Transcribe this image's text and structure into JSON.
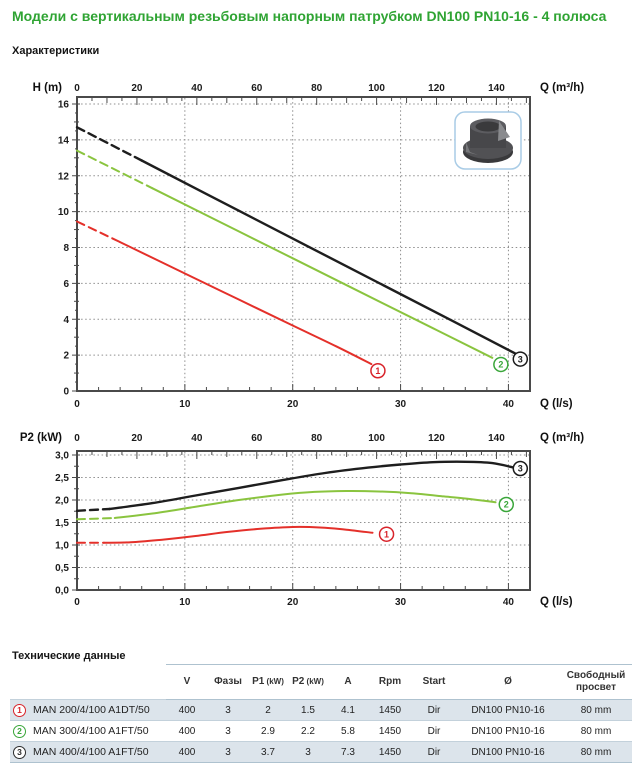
{
  "page": {
    "title": "Модели с вертикальным резьбовым напорным патрубком DN100 PN10-16 - 4 полюса",
    "characteristics_label": "Характеристики",
    "tech_data_label": "Технические данные"
  },
  "chart_data": [
    {
      "type": "line",
      "id": "chart1",
      "ylabel": "H (m)",
      "xlabel_top": "Q (m³/h)",
      "xlabel_bottom": "Q (l/s)",
      "xlim": [
        0,
        42
      ],
      "ylim": [
        0,
        16
      ],
      "m3h_per_ls": 3.6,
      "y_ticks": [
        0,
        2,
        4,
        6,
        8,
        10,
        12,
        14,
        16
      ],
      "y_tick_labels": [
        "0",
        "2",
        "4",
        "6",
        "8",
        "10",
        "12",
        "14",
        "16"
      ],
      "y_minor_step": 0.5,
      "y_mid_step": 1,
      "y_major_step": 2,
      "x_ticks_bottom": [
        0,
        10,
        20,
        30,
        40
      ],
      "x_tick_bottom_labels": [
        "0",
        "10",
        "20",
        "30",
        "40"
      ],
      "x_minor_step": 2,
      "x_ticks_top": [
        0,
        20,
        40,
        60,
        80,
        100,
        120,
        140
      ],
      "x_tick_top_labels": [
        "0",
        "20",
        "40",
        "60",
        "80",
        "100",
        "120",
        "140"
      ],
      "top_minor_step": 5,
      "grid_x": [
        10,
        20,
        30,
        40
      ],
      "grid_y": [
        2,
        4,
        6,
        8,
        10,
        12,
        14,
        16
      ],
      "series": [
        {
          "name": "MAN 200/4/100 A1DT/50",
          "label": "1",
          "color": "#e4302a",
          "label_color": "#d8232a",
          "width": 2,
          "dash_points": [
            [
              0,
              9.45
            ],
            [
              4,
              8.3
            ]
          ],
          "solid_points": [
            [
              4,
              8.3
            ],
            [
              10,
              6.55
            ],
            [
              15,
              5.1
            ],
            [
              20,
              3.65
            ],
            [
              24,
              2.5
            ],
            [
              27.3,
              1.5
            ]
          ],
          "end_label": [
            27.9,
            1.13
          ]
        },
        {
          "name": "MAN 300/4/100 A1FT/50",
          "label": "2",
          "color": "#8ac43f",
          "label_color": "#3aa63a",
          "width": 2,
          "dash_points": [
            [
              0,
              13.4
            ],
            [
              7,
              11.3
            ]
          ],
          "solid_points": [
            [
              7,
              11.3
            ],
            [
              15,
              8.9
            ],
            [
              25,
              5.9
            ],
            [
              33,
              3.5
            ],
            [
              38.5,
              1.85
            ]
          ],
          "end_label": [
            39.3,
            1.48
          ]
        },
        {
          "name": "MAN 400/4/100 A1FT/50",
          "label": "3",
          "color": "#1e1e1e",
          "label_color": "#1c1c1c",
          "width": 2.4,
          "dash_points": [
            [
              0,
              14.7
            ],
            [
              6,
              12.85
            ]
          ],
          "solid_points": [
            [
              6,
              12.85
            ],
            [
              15,
              10.05
            ],
            [
              25,
              6.95
            ],
            [
              35,
              3.85
            ],
            [
              40.6,
              2.1
            ]
          ],
          "end_label": [
            41.1,
            1.78
          ]
        }
      ]
    },
    {
      "type": "line",
      "id": "chart2",
      "ylabel": "P2 (kW)",
      "xlabel_top": "Q (m³/h)",
      "xlabel_bottom": "Q (l/s)",
      "xlim": [
        0,
        42
      ],
      "ylim": [
        0,
        3
      ],
      "m3h_per_ls": 3.6,
      "y_ticks": [
        0,
        0.5,
        1,
        1.5,
        2,
        2.5,
        3
      ],
      "y_tick_labels": [
        "0,0",
        "0,5",
        "1,0",
        "1,5",
        "2,0",
        "2,5",
        "3,0"
      ],
      "y_minor_step": 0.25,
      "y_mid_step": 0.25,
      "y_major_step": 0.5,
      "x_ticks_bottom": [
        0,
        10,
        20,
        30,
        40
      ],
      "x_tick_bottom_labels": [
        "0",
        "10",
        "20",
        "30",
        "40"
      ],
      "x_minor_step": 2,
      "x_ticks_top": [
        0,
        20,
        40,
        60,
        80,
        100,
        120,
        140
      ],
      "x_tick_top_labels": [
        "0",
        "20",
        "40",
        "60",
        "80",
        "100",
        "120",
        "140"
      ],
      "top_minor_step": 5,
      "grid_x": [
        10,
        20,
        30,
        40
      ],
      "grid_y": [
        0.5,
        1,
        1.5,
        2,
        2.5,
        3
      ],
      "series": [
        {
          "name": "MAN 200/4/100 A1DT/50",
          "label": "1",
          "color": "#e4302a",
          "label_color": "#d8232a",
          "width": 2,
          "dash_points": [
            [
              0,
              1.05
            ],
            [
              2.5,
              1.05
            ]
          ],
          "solid_points": [
            [
              2.5,
              1.05
            ],
            [
              5,
              1.06
            ],
            [
              8,
              1.12
            ],
            [
              11,
              1.2
            ],
            [
              14,
              1.29
            ],
            [
              17,
              1.36
            ],
            [
              20,
              1.4
            ],
            [
              22.5,
              1.39
            ],
            [
              25,
              1.34
            ],
            [
              27.4,
              1.27
            ]
          ],
          "end_label": [
            28.7,
            1.24
          ]
        },
        {
          "name": "MAN 300/4/100 A1FT/50",
          "label": "2",
          "color": "#8ac43f",
          "label_color": "#3aa63a",
          "width": 2,
          "dash_points": [
            [
              0,
              1.57
            ],
            [
              3.5,
              1.6
            ]
          ],
          "solid_points": [
            [
              3.5,
              1.6
            ],
            [
              7,
              1.7
            ],
            [
              11,
              1.85
            ],
            [
              15,
              2.0
            ],
            [
              19,
              2.12
            ],
            [
              22,
              2.18
            ],
            [
              25,
              2.2
            ],
            [
              28,
              2.19
            ],
            [
              31,
              2.15
            ],
            [
              34,
              2.08
            ],
            [
              36.5,
              2.02
            ],
            [
              38.8,
              1.95
            ]
          ],
          "end_label": [
            39.8,
            1.9
          ]
        },
        {
          "name": "MAN 400/4/100 A1FT/50",
          "label": "3",
          "color": "#1e1e1e",
          "label_color": "#1c1c1c",
          "width": 2.4,
          "dash_points": [
            [
              0,
              1.76
            ],
            [
              3,
              1.8
            ]
          ],
          "solid_points": [
            [
              3,
              1.8
            ],
            [
              7,
              1.93
            ],
            [
              11,
              2.1
            ],
            [
              15,
              2.27
            ],
            [
              19,
              2.44
            ],
            [
              23,
              2.6
            ],
            [
              27,
              2.72
            ],
            [
              30,
              2.79
            ],
            [
              33,
              2.84
            ],
            [
              36,
              2.85
            ],
            [
              38.5,
              2.82
            ],
            [
              40.5,
              2.72
            ]
          ],
          "end_label": [
            41.1,
            2.7
          ]
        }
      ]
    }
  ],
  "table": {
    "columns": [
      {
        "label": "V"
      },
      {
        "label": "Фазы"
      },
      {
        "label": "P1",
        "unit": "(kW)"
      },
      {
        "label": "P2",
        "unit": "(kW)"
      },
      {
        "label": "A"
      },
      {
        "label": "Rpm"
      },
      {
        "label": "Start"
      },
      {
        "label": "Ø"
      },
      {
        "label": "Свободный просвет"
      }
    ],
    "rows": [
      {
        "num": "1",
        "color": "#d8232a",
        "model": "MAN 200/4/100 A1DT/50",
        "values": [
          "400",
          "3",
          "2",
          "1.5",
          "4.1",
          "1450",
          "Dir",
          "DN100 PN10-16",
          "80 mm"
        ]
      },
      {
        "num": "2",
        "color": "#3aa63a",
        "model": "MAN 300/4/100 A1FT/50",
        "values": [
          "400",
          "3",
          "2.9",
          "2.2",
          "5.8",
          "1450",
          "Dir",
          "DN100 PN10-16",
          "80 mm"
        ]
      },
      {
        "num": "3",
        "color": "#2b2b2b",
        "model": "MAN 400/4/100 A1FT/50",
        "values": [
          "400",
          "3",
          "3.7",
          "3",
          "7.3",
          "1450",
          "Dir",
          "DN100 PN10-16",
          "80 mm"
        ]
      }
    ]
  }
}
